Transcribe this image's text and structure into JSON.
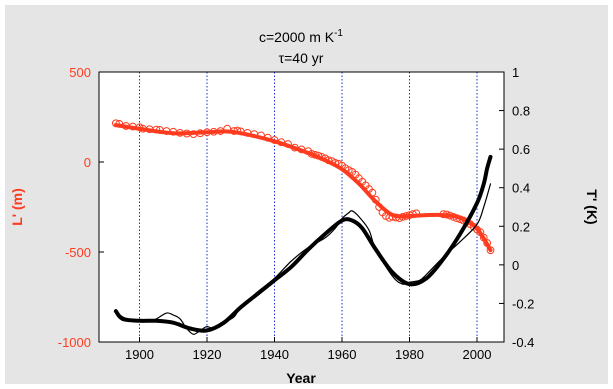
{
  "chart_data": {
    "type": "line",
    "title": {
      "main": "c=2000 m K",
      "superscript": "-1"
    },
    "subtitle": "τ=40 yr",
    "xlabel": "Year",
    "ylabel_left": "L' (m)",
    "ylabel_right": "T' (K)",
    "xlim": [
      1888,
      2008
    ],
    "ylim_left": [
      -1000,
      500
    ],
    "ylim_right": [
      -0.4,
      1.0
    ],
    "x_ticks": [
      1900,
      1920,
      1940,
      1960,
      1980,
      2000
    ],
    "y_ticks_left": [
      -1000,
      -500,
      0,
      500
    ],
    "y_ticks_left_labels": [
      "-1000",
      "-500",
      "0",
      "500"
    ],
    "y_ticks_right": [
      -0.4,
      -0.2,
      0,
      0.2,
      0.4,
      0.6,
      0.8,
      1.0
    ],
    "y_ticks_right_labels": [
      "-0.4",
      "-0.2",
      "0",
      "0.2",
      "0.4",
      "0.6",
      "0.8",
      "1"
    ],
    "grid": {
      "x_vertical": true,
      "color": "#1a2fd6",
      "style": "dotted"
    },
    "colors": {
      "length": "#ff3b1f",
      "temperature": "#000000",
      "left_axis": "#ff3b1f",
      "right_axis": "#000000"
    },
    "series": [
      {
        "axis": "left",
        "style": "markers",
        "color": "#ff3b1f",
        "x": [
          1893,
          1894,
          1896,
          1898,
          1900,
          1901,
          1903,
          1905,
          1906,
          1908,
          1910,
          1912,
          1914,
          1916,
          1918,
          1920,
          1922,
          1924,
          1926,
          1928,
          1929,
          1930,
          1932,
          1934,
          1936,
          1938,
          1940,
          1942,
          1944,
          1946,
          1948,
          1950,
          1951,
          1952,
          1953,
          1954,
          1955,
          1956,
          1957,
          1958,
          1959,
          1960,
          1961,
          1962,
          1963,
          1964,
          1965,
          1966,
          1967,
          1968,
          1969,
          1970,
          1971,
          1972,
          1973,
          1974,
          1975,
          1976,
          1977,
          1978,
          1979,
          1980,
          1981,
          1982,
          1990,
          1991,
          1992,
          1993,
          1994,
          1995,
          1996,
          1997,
          1998,
          1999,
          2000,
          2001,
          2002,
          2003,
          2004
        ],
        "y": [
          215,
          212,
          200,
          197,
          193,
          185,
          182,
          180,
          178,
          172,
          168,
          162,
          158,
          155,
          160,
          165,
          168,
          172,
          185,
          172,
          175,
          170,
          162,
          155,
          148,
          135,
          122,
          110,
          100,
          80,
          70,
          60,
          45,
          40,
          35,
          28,
          20,
          10,
          5,
          -5,
          -10,
          -20,
          -35,
          -45,
          -55,
          -70,
          -90,
          -110,
          -130,
          -150,
          -170,
          -210,
          -250,
          -280,
          -300,
          -310,
          -305,
          -308,
          -312,
          -305,
          -300,
          -295,
          -290,
          -285,
          -290,
          -292,
          -298,
          -305,
          -312,
          -318,
          -325,
          -332,
          -345,
          -360,
          -375,
          -390,
          -420,
          -450,
          -490
        ]
      },
      {
        "axis": "left",
        "style": "line-thick",
        "color": "#ff3b1f",
        "x": [
          1893,
          1900,
          1910,
          1920,
          1925,
          1930,
          1940,
          1950,
          1955,
          1960,
          1965,
          1970,
          1975,
          1980,
          1985,
          1990,
          1995,
          2000,
          2004
        ],
        "y": [
          205,
          185,
          160,
          165,
          170,
          160,
          115,
          50,
          10,
          -40,
          -120,
          -220,
          -295,
          -300,
          -295,
          -295,
          -310,
          -370,
          -490
        ]
      },
      {
        "axis": "right",
        "style": "line-thin",
        "color": "#000000",
        "x": [
          1893,
          1895,
          1898,
          1900,
          1903,
          1905,
          1908,
          1910,
          1912,
          1914,
          1916,
          1918,
          1920,
          1922,
          1925,
          1928,
          1930,
          1935,
          1940,
          1945,
          1950,
          1955,
          1958,
          1960,
          1962,
          1963,
          1965,
          1968,
          1970,
          1975,
          1978,
          1980,
          1983,
          1985,
          1990,
          1995,
          2000,
          2002,
          2004
        ],
        "y": [
          -0.24,
          -0.27,
          -0.29,
          -0.29,
          -0.29,
          -0.28,
          -0.25,
          -0.26,
          -0.28,
          -0.33,
          -0.36,
          -0.34,
          -0.32,
          -0.33,
          -0.3,
          -0.27,
          -0.22,
          -0.14,
          -0.07,
          0.02,
          0.09,
          0.14,
          0.19,
          0.24,
          0.27,
          0.28,
          0.25,
          0.18,
          0.08,
          -0.06,
          -0.1,
          -0.09,
          -0.08,
          -0.05,
          0.04,
          0.12,
          0.21,
          0.3,
          0.42
        ]
      },
      {
        "axis": "right",
        "style": "line-thick",
        "color": "#000000",
        "x": [
          1893,
          1895,
          1900,
          1905,
          1910,
          1915,
          1920,
          1925,
          1930,
          1935,
          1940,
          1945,
          1950,
          1955,
          1960,
          1963,
          1966,
          1970,
          1975,
          1980,
          1985,
          1990,
          1995,
          2000,
          2002,
          2003,
          2004
        ],
        "y": [
          -0.24,
          -0.28,
          -0.29,
          -0.29,
          -0.3,
          -0.33,
          -0.34,
          -0.3,
          -0.22,
          -0.15,
          -0.08,
          -0.01,
          0.08,
          0.16,
          0.23,
          0.23,
          0.19,
          0.08,
          -0.04,
          -0.1,
          -0.07,
          0.03,
          0.16,
          0.32,
          0.42,
          0.5,
          0.56
        ]
      }
    ]
  }
}
